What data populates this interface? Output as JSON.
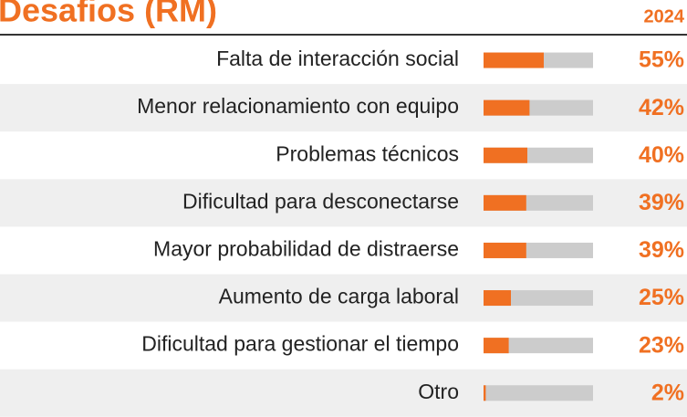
{
  "chart_data": {
    "type": "bar",
    "title": "Desafios (RM)",
    "subtitle": "2024",
    "categories": [
      "Falta de interacción social",
      "Menor relacionamiento con equipo",
      "Problemas técnicos",
      "Dificultad para desconectarse",
      "Mayor probabilidad de distraerse",
      "Aumento de carga laboral",
      "Dificultad para gestionar el tiempo",
      "Otro"
    ],
    "values": [
      55,
      42,
      40,
      39,
      39,
      25,
      23,
      2
    ],
    "value_labels": [
      "55%",
      "42%",
      "40%",
      "39%",
      "39%",
      "25%",
      "23%",
      "2%"
    ],
    "xlim": [
      0,
      100
    ],
    "color": "#f07022",
    "track_color": "#cccccc"
  }
}
